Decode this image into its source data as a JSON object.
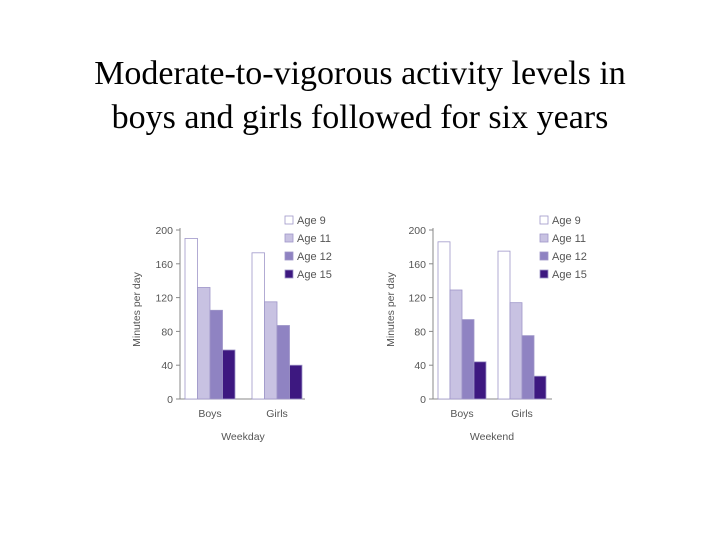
{
  "slide": {
    "title_line1": "Moderate-to-vigorous activity levels in",
    "title_line2": "boys and girls followed for six years"
  },
  "chart_data": [
    {
      "type": "bar",
      "categories": [
        "Boys",
        "Girls"
      ],
      "xlabel": "Weekday",
      "ylabel": "Minutes per day",
      "ylim": [
        0,
        200
      ],
      "yticks": [
        0,
        40,
        80,
        120,
        160,
        200
      ],
      "legend_position": "top-right",
      "series": [
        {
          "name": "Age 9",
          "values": [
            190,
            173
          ],
          "color": "#ffffff"
        },
        {
          "name": "Age 11",
          "values": [
            132,
            115
          ],
          "color": "#c8c2e2"
        },
        {
          "name": "Age 12",
          "values": [
            105,
            87
          ],
          "color": "#8f83c2"
        },
        {
          "name": "Age 15",
          "values": [
            58,
            40
          ],
          "color": "#3d1880"
        }
      ]
    },
    {
      "type": "bar",
      "categories": [
        "Boys",
        "Girls"
      ],
      "xlabel": "Weekend",
      "ylabel": "Minutes per day",
      "ylim": [
        0,
        200
      ],
      "yticks": [
        0,
        40,
        80,
        120,
        160,
        200
      ],
      "legend_position": "top-right",
      "series": [
        {
          "name": "Age 9",
          "values": [
            186,
            175
          ],
          "color": "#ffffff"
        },
        {
          "name": "Age 11",
          "values": [
            129,
            114
          ],
          "color": "#c8c2e2"
        },
        {
          "name": "Age 12",
          "values": [
            94,
            75
          ],
          "color": "#8f83c2"
        },
        {
          "name": "Age 15",
          "values": [
            44,
            27
          ],
          "color": "#3d1880"
        }
      ]
    }
  ]
}
